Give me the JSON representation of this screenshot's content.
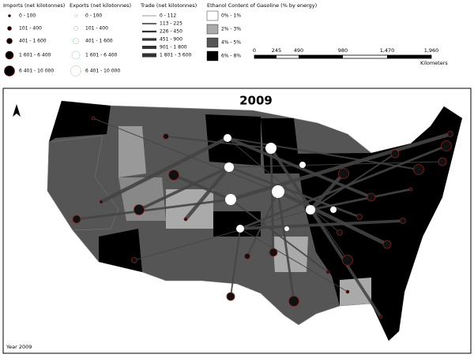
{
  "legends": [
    {
      "title": "Imports (net kilotonnes)",
      "items": [
        "0 - 100",
        "101 - 400",
        "401 - 1 600",
        "1 601 - 6 400",
        "6 401 - 10 000"
      ]
    },
    {
      "title": "Exports (net kilotonnes)",
      "items": [
        "0 - 100",
        "101 - 400",
        "401 - 1 600",
        "1 601 - 6 400",
        "6 401 - 10 000"
      ]
    },
    {
      "title": "Trade (net kilotonnes)",
      "items": [
        "0 - 112",
        "113 - 225",
        "226 - 450",
        "451 - 900",
        "901 - 1 800",
        "1 801 - 3 600"
      ]
    },
    {
      "title": "Ethanol Content of Gasoline (% by energy)",
      "items": [
        "0% - 1%",
        "2% - 3%",
        "4% - 5%",
        "6% - 8%"
      ]
    }
  ],
  "scale_bar": {
    "ticks": [
      "0",
      "245",
      "490",
      "980",
      "1,470",
      "1,960"
    ],
    "unit": "Kilometers"
  },
  "map": {
    "title": "2009",
    "caption": "Year 2009"
  }
}
